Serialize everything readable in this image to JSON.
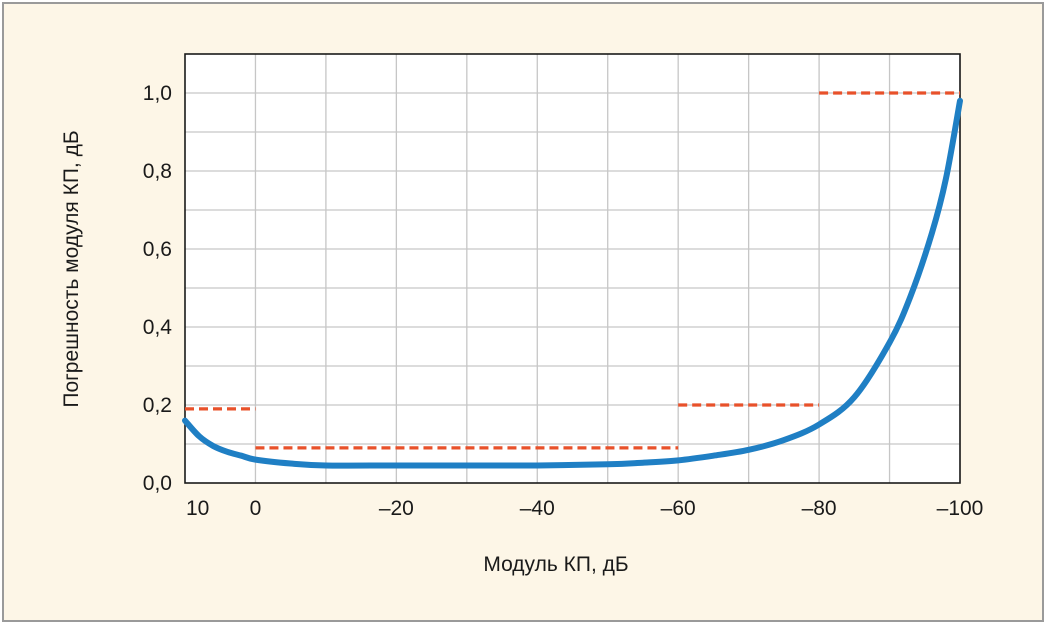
{
  "chart_data": {
    "type": "line",
    "xlabel": "Модуль КП, дБ",
    "ylabel": "Погрешность модуля КП, дБ",
    "xlim": [
      10,
      -100
    ],
    "ylim": [
      0.0,
      1.1
    ],
    "x_ticks": [
      {
        "value": 10,
        "label": "10"
      },
      {
        "value": 0,
        "label": "0"
      },
      {
        "value": -20,
        "label": "–20"
      },
      {
        "value": -40,
        "label": "–40"
      },
      {
        "value": -60,
        "label": "–60"
      },
      {
        "value": -80,
        "label": "–80"
      },
      {
        "value": -100,
        "label": "–100"
      }
    ],
    "y_ticks": [
      {
        "value": 0.0,
        "label": "0,0"
      },
      {
        "value": 0.2,
        "label": "0,2"
      },
      {
        "value": 0.4,
        "label": "0,4"
      },
      {
        "value": 0.6,
        "label": "0,6"
      },
      {
        "value": 0.8,
        "label": "0,8"
      },
      {
        "value": 1.0,
        "label": "1,0"
      }
    ],
    "grid": true,
    "series": [
      {
        "style": "solid",
        "color": "#1f7fc4",
        "x": [
          10,
          8,
          6,
          4,
          2,
          0,
          -5,
          -10,
          -20,
          -30,
          -40,
          -50,
          -55,
          -60,
          -65,
          -70,
          -75,
          -80,
          -85,
          -90,
          -93,
          -96,
          -98,
          -100
        ],
        "y": [
          0.16,
          0.12,
          0.095,
          0.08,
          0.07,
          0.06,
          0.05,
          0.045,
          0.045,
          0.045,
          0.045,
          0.048,
          0.052,
          0.058,
          0.07,
          0.085,
          0.11,
          0.15,
          0.22,
          0.36,
          0.48,
          0.64,
          0.78,
          0.98
        ]
      },
      {
        "style": "dashed",
        "color": "#e8512a",
        "segments": [
          {
            "x": [
              10,
              0
            ],
            "y": [
              0.19,
              0.19
            ]
          },
          {
            "x": [
              0,
              -60
            ],
            "y": [
              0.09,
              0.09
            ]
          },
          {
            "x": [
              -60,
              -80
            ],
            "y": [
              0.2,
              0.2
            ]
          },
          {
            "x": [
              -80,
              -100
            ],
            "y": [
              1.0,
              1.0
            ]
          }
        ]
      }
    ]
  }
}
